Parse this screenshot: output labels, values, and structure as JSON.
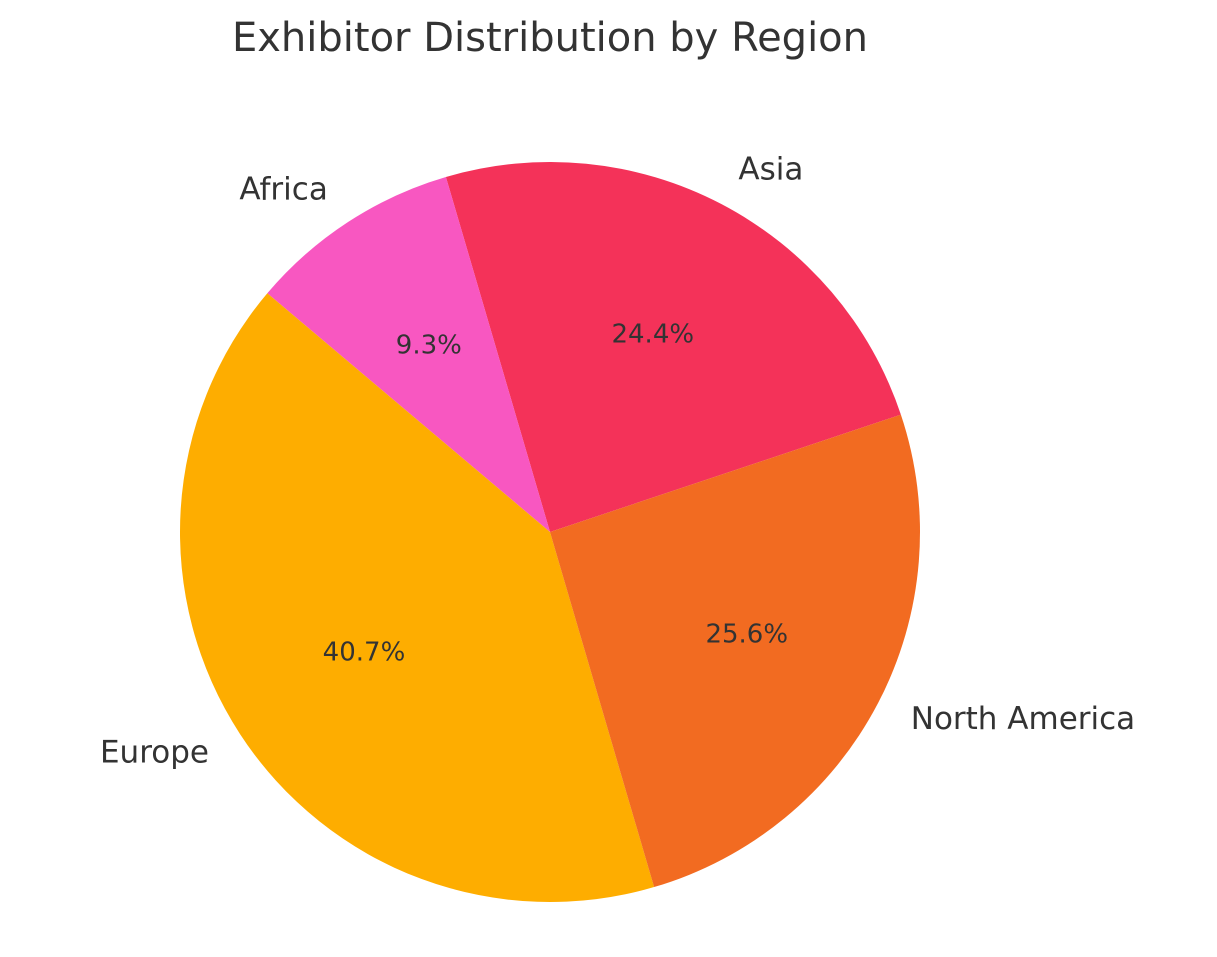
{
  "chart_data": {
    "type": "pie",
    "title": "Exhibitor Distribution by Region",
    "categories": [
      "Asia",
      "Africa",
      "Europe",
      "North America"
    ],
    "values": [
      24.4,
      9.3,
      40.7,
      25.6
    ],
    "value_labels": [
      "24.4%",
      "9.3%",
      "40.7%",
      "25.6%"
    ],
    "colors": [
      "#f43259",
      "#f857c1",
      "#fead00",
      "#f26b21"
    ]
  }
}
